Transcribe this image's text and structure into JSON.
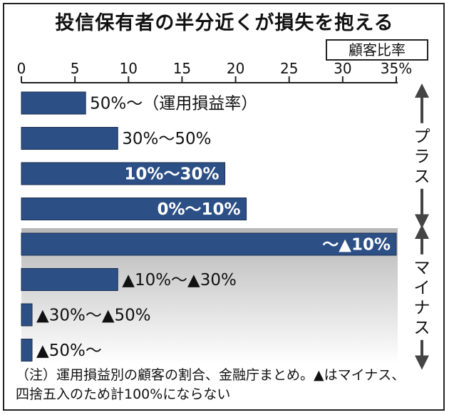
{
  "chart_data": {
    "type": "bar",
    "orientation": "horizontal",
    "title": "投信保有者の半分近くが損失を抱える",
    "unit_label": "顧客比率",
    "xlim": [
      0,
      35
    ],
    "xticks": [
      0,
      5,
      10,
      15,
      20,
      25,
      30,
      35
    ],
    "xtick_labels": [
      "0",
      "5",
      "10",
      "15",
      "20",
      "25",
      "30",
      "35%"
    ],
    "categories": [
      "50%～（運用損益率）",
      "30%～50%",
      "10%～30%",
      "0%～10%",
      "～▲10%",
      "▲10%～▲30%",
      "▲30%～▲50%",
      "▲50%～"
    ],
    "values": [
      6,
      9,
      19,
      21,
      35,
      9,
      1,
      1
    ],
    "label_inside": [
      false,
      false,
      true,
      true,
      true,
      false,
      false,
      false
    ],
    "group_labels": [
      {
        "label": "プラス",
        "from": 0,
        "to": 3
      },
      {
        "label": "マイナス",
        "from": 4,
        "to": 7
      }
    ],
    "bar_color": "#2c4f86",
    "note_lines": [
      "（注）運用損益別の顧客の割合、金融庁まとめ。▲はマイナス、",
      "四捨五入のため計100%にならない"
    ]
  }
}
